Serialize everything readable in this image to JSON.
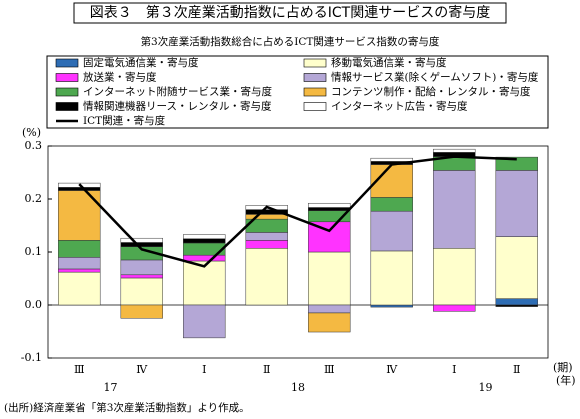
{
  "chart_data": {
    "type": "stacked-bar-line",
    "title": "図表３　第３次産業活動指数に占めるICT関連サービスの寄与度",
    "subtitle": "第3次産業活動指数総合に占めるICT関連サービス指数の寄与度",
    "y_unit": "(%)",
    "x_unit": "(期)",
    "year_unit": "(年)",
    "source": "(出所)経済産業省「第3次産業活動指数」より作成。",
    "categories": [
      "Ⅲ",
      "Ⅳ",
      "Ⅰ",
      "Ⅱ",
      "Ⅲ",
      "Ⅳ",
      "Ⅰ",
      "Ⅱ"
    ],
    "years": [
      "17",
      null,
      "18",
      null,
      null,
      null,
      "19",
      null
    ],
    "ylim": [
      -0.1,
      0.3
    ],
    "yticks": [
      -0.1,
      {
        "value": 0,
        "label": "0.0"
      },
      0.1,
      0.2,
      0.3
    ],
    "grid": false,
    "series": [
      {
        "name": "固定電気通信業・寄与度",
        "color": "#2e6db4",
        "values": [
          0,
          0,
          0,
          0,
          0,
          -0.004,
          0,
          0.012
        ]
      },
      {
        "name": "移動電気通信業・寄与度",
        "color": "#ffffcc",
        "values": [
          0.062,
          0.051,
          0.083,
          0.107,
          0.1,
          0.102,
          0.107,
          0.117
        ]
      },
      {
        "name": "放送業・寄与度",
        "color": "#ff33ff",
        "values": [
          0.006,
          0.006,
          0.011,
          0.015,
          0.057,
          0,
          -0.012,
          0
        ]
      },
      {
        "name": "情報サービス業(除くゲームソフト)・寄与度",
        "color": "#b4a7d6",
        "values": [
          0.022,
          0.028,
          -0.062,
          0.015,
          -0.015,
          0.075,
          0.147,
          0.125
        ]
      },
      {
        "name": "インターネット附随サービス業・寄与度",
        "color": "#4ea850",
        "values": [
          0.032,
          0.025,
          0.023,
          0.025,
          0.021,
          0.026,
          0.026,
          0.025
        ]
      },
      {
        "name": "コンテンツ制作・配給・レンタル・寄与度",
        "color": "#f4b942",
        "values": [
          0.094,
          -0.025,
          0,
          0.009,
          -0.036,
          0.062,
          0,
          0
        ]
      },
      {
        "name": "情報関連機器リース・レンタル・寄与度",
        "color": "#000000",
        "values": [
          0.006,
          0.008,
          0.008,
          0.009,
          0.006,
          0.006,
          0.008,
          -0.003
        ]
      },
      {
        "name": "インターネット広告・寄与度",
        "color": "#ffffff",
        "values": [
          0.008,
          0.008,
          0.008,
          0.008,
          0.008,
          0.006,
          0.006,
          0
        ]
      }
    ],
    "line": {
      "name": "ICT関連・寄与度",
      "color": "#000000",
      "values": [
        0.228,
        0.105,
        0.073,
        0.185,
        0.14,
        0.265,
        0.28,
        0.275
      ]
    }
  }
}
